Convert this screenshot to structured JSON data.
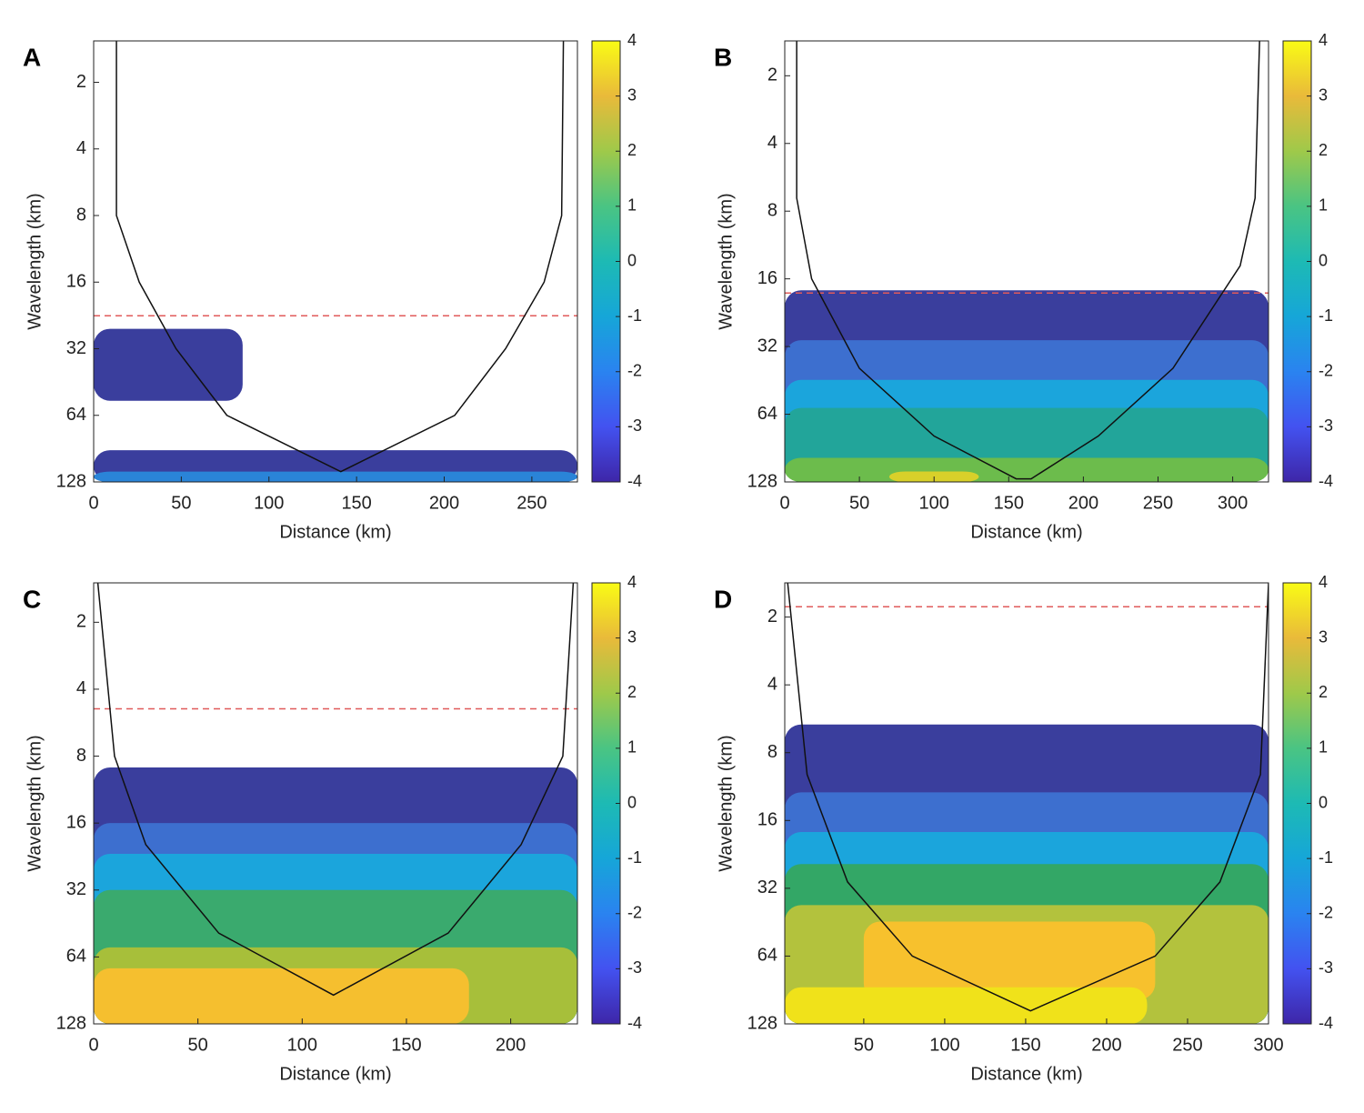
{
  "chart_data": [
    {
      "type": "contour",
      "panel_label": "A",
      "x_label": "Distance (km)",
      "y_label": "Wavelength (km)",
      "xlim": [
        0,
        276
      ],
      "xticks": [
        0,
        50,
        100,
        150,
        200,
        250
      ],
      "ylim": [
        1.3,
        128
      ],
      "yticks": [
        2,
        4,
        8,
        16,
        32,
        64,
        128
      ],
      "y_log": true,
      "y_reversed": true,
      "clim": [
        -4,
        4
      ],
      "cticks": [
        -4,
        -3,
        -2,
        -1,
        0,
        1,
        2,
        3,
        4
      ],
      "colormap": [
        "#3e26a8",
        "#4352f0",
        "#2a83f0",
        "#16a6d8",
        "#1dbab4",
        "#4ac483",
        "#9fc94a",
        "#e9ba3a",
        "#f9fb15"
      ],
      "dashed_line": 22.7,
      "dashed_color": "#e05a5a",
      "cone": {
        "x": [
          13,
          13,
          26,
          47,
          76,
          141,
          206,
          235,
          257,
          267,
          268
        ],
        "y": [
          1.3,
          8,
          16,
          32,
          64,
          115,
          64,
          32,
          16,
          8,
          1.3
        ]
      },
      "patches": [
        {
          "x": [
            0,
            85
          ],
          "y": [
            26,
            55
          ],
          "color": "#3a3e9d"
        },
        {
          "x": [
            0,
            276
          ],
          "y": [
            92,
            128
          ],
          "color": "#3a3e9d"
        },
        {
          "x": [
            0,
            276
          ],
          "y": [
            115,
            128
          ],
          "color": "#2a84d8"
        }
      ]
    },
    {
      "type": "contour",
      "panel_label": "B",
      "x_label": "Distance (km)",
      "y_label": "Wavelength (km)",
      "xlim": [
        0,
        324
      ],
      "xticks": [
        0,
        50,
        100,
        150,
        200,
        250,
        300
      ],
      "ylim": [
        1.4,
        128
      ],
      "yticks": [
        2,
        4,
        8,
        16,
        32,
        64,
        128
      ],
      "y_log": true,
      "y_reversed": true,
      "clim": [
        -4,
        4
      ],
      "cticks": [
        -4,
        -3,
        -2,
        -1,
        0,
        1,
        2,
        3,
        4
      ],
      "colormap": [
        "#3e26a8",
        "#4352f0",
        "#2a83f0",
        "#16a6d8",
        "#1dbab4",
        "#4ac483",
        "#9fc94a",
        "#e9ba3a",
        "#f9fb15"
      ],
      "dashed_line": 18.5,
      "dashed_color": "#e05a5a",
      "cone": {
        "x": [
          8,
          8,
          18,
          50,
          100,
          155,
          165,
          210,
          260,
          305,
          315,
          318
        ],
        "y": [
          1.4,
          7,
          16,
          40,
          80,
          124,
          124,
          80,
          40,
          14,
          7,
          1.4
        ]
      },
      "patches": [
        {
          "x": [
            0,
            324
          ],
          "y": [
            18,
            128
          ],
          "color": "#3a3e9d"
        },
        {
          "x": [
            0,
            324
          ],
          "y": [
            30,
            128
          ],
          "color": "#3d6fcf"
        },
        {
          "x": [
            0,
            324
          ],
          "y": [
            45,
            128
          ],
          "color": "#1ba5dc"
        },
        {
          "x": [
            0,
            324
          ],
          "y": [
            60,
            128
          ],
          "color": "#22a59a"
        },
        {
          "x": [
            0,
            324
          ],
          "y": [
            100,
            128
          ],
          "color": "#6cbc4c"
        },
        {
          "x": [
            70,
            130
          ],
          "y": [
            115,
            128
          ],
          "color": "#d8d02a"
        }
      ]
    },
    {
      "type": "contour",
      "panel_label": "C",
      "x_label": "Distance (km)",
      "y_label": "Wavelength (km)",
      "xlim": [
        0,
        232
      ],
      "xticks": [
        0,
        50,
        100,
        150,
        200
      ],
      "ylim": [
        1.33,
        128
      ],
      "yticks": [
        2,
        4,
        8,
        16,
        32,
        64,
        128
      ],
      "y_log": true,
      "y_reversed": true,
      "clim": [
        -4,
        4
      ],
      "cticks": [
        -4,
        -3,
        -2,
        -1,
        0,
        1,
        2,
        3,
        4
      ],
      "colormap": [
        "#3e26a8",
        "#4352f0",
        "#2a83f0",
        "#16a6d8",
        "#1dbab4",
        "#4ac483",
        "#9fc94a",
        "#e9ba3a",
        "#f9fb15"
      ],
      "dashed_line": 4.9,
      "dashed_color": "#e05a5a",
      "cone": {
        "x": [
          2,
          10,
          25,
          60,
          115,
          170,
          205,
          225,
          230
        ],
        "y": [
          1.33,
          8,
          20,
          50,
          95,
          50,
          20,
          8,
          1.33
        ]
      },
      "patches": [
        {
          "x": [
            0,
            232
          ],
          "y": [
            9,
            128
          ],
          "color": "#3a3e9d"
        },
        {
          "x": [
            0,
            232
          ],
          "y": [
            16,
            128
          ],
          "color": "#3d6fcf"
        },
        {
          "x": [
            0,
            232
          ],
          "y": [
            22,
            128
          ],
          "color": "#1ba5dc"
        },
        {
          "x": [
            0,
            232
          ],
          "y": [
            32,
            128
          ],
          "color": "#3aaa6e"
        },
        {
          "x": [
            0,
            232
          ],
          "y": [
            58,
            128
          ],
          "color": "#a7bf3a"
        },
        {
          "x": [
            0,
            180
          ],
          "y": [
            72,
            128
          ],
          "color": "#f5bf2f"
        }
      ]
    },
    {
      "type": "contour",
      "panel_label": "D",
      "x_label": "Distance (km)",
      "y_label": "Wavelength (km)",
      "xlim": [
        1.2,
        300
      ],
      "xticks": [
        50,
        100,
        150,
        200,
        250,
        300
      ],
      "ylim": [
        1.41,
        128
      ],
      "yticks": [
        2,
        4,
        8,
        16,
        32,
        64,
        128
      ],
      "y_log": true,
      "y_reversed": true,
      "clim": [
        -4,
        4
      ],
      "cticks": [
        -4,
        -3,
        -2,
        -1,
        0,
        1,
        2,
        3,
        4
      ],
      "colormap": [
        "#3e26a8",
        "#4352f0",
        "#2a83f0",
        "#16a6d8",
        "#1dbab4",
        "#4ac483",
        "#9fc94a",
        "#e9ba3a",
        "#f9fb15"
      ],
      "dashed_line": 1.8,
      "dashed_color": "#e05a5a",
      "cone": {
        "x": [
          3,
          15,
          40,
          80,
          153,
          230,
          270,
          295,
          300
        ],
        "y": [
          1.41,
          10,
          30,
          64,
          112,
          64,
          30,
          10,
          1.41
        ]
      },
      "patches": [
        {
          "x": [
            1.2,
            300
          ],
          "y": [
            6,
            128
          ],
          "color": "#3a3e9d"
        },
        {
          "x": [
            1.2,
            300
          ],
          "y": [
            12,
            128
          ],
          "color": "#3d6fcf"
        },
        {
          "x": [
            1.2,
            300
          ],
          "y": [
            18,
            128
          ],
          "color": "#1ba5dc"
        },
        {
          "x": [
            1.2,
            300
          ],
          "y": [
            25,
            128
          ],
          "color": "#33a766"
        },
        {
          "x": [
            1.2,
            300
          ],
          "y": [
            38,
            128
          ],
          "color": "#b3c23d"
        },
        {
          "x": [
            50,
            230
          ],
          "y": [
            45,
            100
          ],
          "color": "#f7c12d"
        },
        {
          "x": [
            1.2,
            225
          ],
          "y": [
            88,
            128
          ],
          "color": "#f0e21a"
        }
      ]
    }
  ]
}
